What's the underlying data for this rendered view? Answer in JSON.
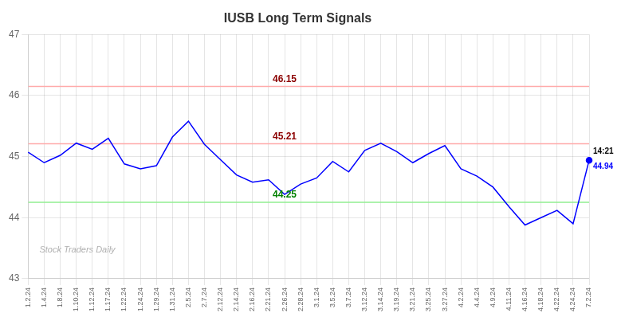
{
  "chart_data": {
    "type": "line",
    "title": "IUSB Long Term Signals",
    "categories": [
      "1.2.24",
      "1.4.24",
      "1.8.24",
      "1.10.24",
      "1.12.24",
      "1.17.24",
      "1.22.24",
      "1.24.24",
      "1.29.24",
      "1.31.24",
      "2.5.24",
      "2.7.24",
      "2.12.24",
      "2.14.24",
      "2.16.24",
      "2.21.24",
      "2.26.24",
      "2.28.24",
      "3.1.24",
      "3.5.24",
      "3.7.24",
      "3.12.24",
      "3.14.24",
      "3.19.24",
      "3.21.24",
      "3.25.24",
      "3.27.24",
      "4.2.24",
      "4.4.24",
      "4.9.24",
      "4.11.24",
      "4.16.24",
      "4.18.24",
      "4.22.24",
      "4.24.24",
      "7.2.24"
    ],
    "values": [
      45.07,
      44.9,
      45.02,
      45.22,
      45.12,
      45.3,
      44.88,
      44.8,
      44.85,
      45.32,
      45.58,
      45.2,
      44.95,
      44.7,
      44.58,
      44.62,
      44.38,
      44.55,
      44.65,
      44.92,
      44.75,
      45.1,
      45.22,
      45.08,
      44.9,
      45.05,
      45.18,
      44.8,
      44.68,
      44.5,
      44.18,
      43.88,
      44.0,
      44.12,
      43.9,
      44.94
    ],
    "color": "blue",
    "ylim": [
      43,
      47
    ],
    "yticks": [
      43,
      44,
      45,
      46,
      47
    ],
    "grid": true,
    "reference_lines": [
      {
        "value": 46.15,
        "color": "#ffaaaa",
        "label": "46.15",
        "label_color": "darkred"
      },
      {
        "value": 45.21,
        "color": "#ffaaaa",
        "label": "45.21",
        "label_color": "darkred"
      },
      {
        "value": 44.25,
        "color": "#90ee90",
        "label": "44.25",
        "label_color": "green"
      }
    ],
    "last_point": {
      "time_label": "14:21",
      "value_label": "44.94",
      "color": "blue"
    },
    "watermark": {
      "text": "Stock Traders Daily",
      "color": "#b0b0b0"
    }
  }
}
